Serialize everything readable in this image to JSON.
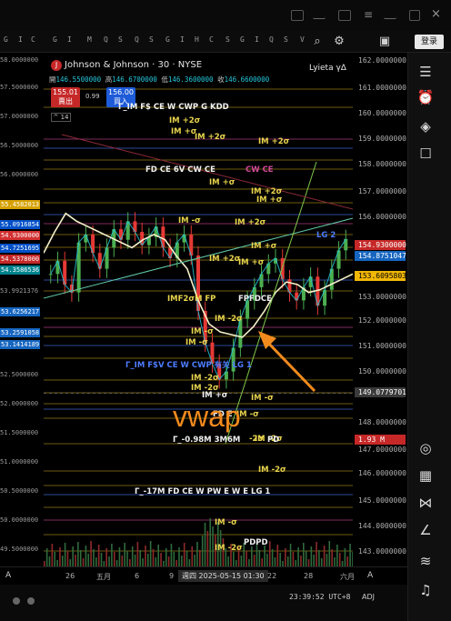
{
  "colors": {
    "background": "#000000",
    "level_yellow": "#e8d44d",
    "level_blue": "#4d7cff",
    "level_magenta": "#d34a9c",
    "vwap_annotation": "#f28a1d",
    "price_line_cyan": "#26c6da",
    "up_green": "#4caf50",
    "down_red": "#e53935"
  },
  "toolbar": {
    "letters": [
      "G",
      "I",
      "C",
      "G",
      "I",
      "M",
      "Q",
      "S",
      "Q",
      "S",
      "G",
      "I",
      "H",
      "C",
      "S",
      "G",
      "I",
      "Q",
      "S",
      "V",
      "G",
      "I",
      "T",
      "S",
      "I"
    ],
    "login_label": "登录",
    "icons": [
      "crosshair-icon",
      "settings-icon",
      "camera-icon"
    ]
  },
  "header": {
    "logo_letter": "J",
    "title": "Johnson & Johnson · 30 · NYSE",
    "ohlc_prefix": "開",
    "ohlc_open": "146.5500000",
    "ohlc_high_label": "高",
    "ohlc_high": "146.6700000",
    "ohlc_low_label": "低",
    "ohlc_low": "146.3600000",
    "ohlc_close_label": "收",
    "ohlc_close": "146.6600000",
    "ohlc_change": "+0.1100000 (+0.08%)",
    "sell_price": "155.01",
    "sell_label": "賣出",
    "spread": "0.99",
    "buy_price": "156.00",
    "buy_label": "買入",
    "interval_badge": "14",
    "right_label": "Lyieta γΔ"
  },
  "annotation": {
    "vwap": "vwap"
  },
  "levels": [
    {
      "text": "Γ_IM F$ CE W CWP G  KDD",
      "style": "w"
    },
    {
      "text": "IM +2σ",
      "style": "y"
    },
    {
      "text": "IM +σ",
      "style": "y"
    },
    {
      "text": "IM +2σ",
      "style": "y"
    },
    {
      "text": "IM +2σ",
      "style": "y"
    },
    {
      "text": "FD CE 6V CW CE",
      "style": "w"
    },
    {
      "text": "CW CE",
      "style": "r"
    },
    {
      "text": "IM +σ",
      "style": "y"
    },
    {
      "text": "IM +2σ",
      "style": "y"
    },
    {
      "text": "IM +σ",
      "style": "y"
    },
    {
      "text": "IM -σ",
      "style": "y"
    },
    {
      "text": "IM +2σ",
      "style": "y"
    },
    {
      "text": "LG 2",
      "style": "b"
    },
    {
      "text": "IM +σ",
      "style": "y"
    },
    {
      "text": "IM +2σ",
      "style": "y"
    },
    {
      "text": "IM +σ",
      "style": "y"
    },
    {
      "text": "IMF2σM FP",
      "style": "y"
    },
    {
      "text": "FPFDCE",
      "style": "w"
    },
    {
      "text": "IM -2σ",
      "style": "y"
    },
    {
      "text": "IM -σ",
      "style": "y"
    },
    {
      "text": "IM -σ",
      "style": "y"
    },
    {
      "text": "Γ_IM F$V CE W CWP 有关 LG 1",
      "style": "b"
    },
    {
      "text": "IM -2σ",
      "style": "y"
    },
    {
      "text": "IM -2σ",
      "style": "y"
    },
    {
      "text": "IM +σ",
      "style": "w"
    },
    {
      "text": "IM -σ",
      "style": "y"
    },
    {
      "text": "IM -2σ",
      "style": "y"
    },
    {
      "text": "FD E",
      "style": "w"
    },
    {
      "text": "IM -σ",
      "style": "y"
    },
    {
      "text": "-2σ",
      "style": "y"
    },
    {
      "text": "Γ_-0.98M 3M6M",
      "style": "w"
    },
    {
      "text": "PD",
      "style": "w"
    },
    {
      "text": "IM -2σ",
      "style": "y"
    },
    {
      "text": "Γ_-17M FD CE W PW E W E LG 1",
      "style": "w"
    },
    {
      "text": "IM -σ",
      "style": "y"
    },
    {
      "text": "PDPD",
      "style": "w"
    },
    {
      "text": "IM -2σ",
      "style": "y"
    }
  ],
  "left_scale": [
    "58.0000000",
    "57.5000000",
    "57.0000000",
    "56.5000000",
    "56.0000000",
    "55.4582013",
    "55.0916854",
    "54.9300000",
    "54.7251695",
    "54.5378000",
    "54.3586536",
    "53.9921376",
    "53.6256217",
    "53.2591058",
    "53.1414189",
    "52.5000000",
    "52.0000000",
    "51.5000000",
    "51.0000000",
    "50.5000000",
    "50.0000000",
    "49.5000000"
  ],
  "right_scale": [
    "162.0000000",
    "161.0000000",
    "160.0000000",
    "159.0000000",
    "158.0000000",
    "157.0000000",
    "156.0000000",
    "154.9300000",
    "154.8751047",
    "153.6095803",
    "153.0000000",
    "152.0000000",
    "151.0000000",
    "150.0000000",
    "149.0779701",
    "148.0000000",
    "147.0000000",
    "1.93 M",
    "146.0000000",
    "145.0000000",
    "144.0000000",
    "143.0000000"
  ],
  "x_axis": {
    "ticks": [
      "26",
      "五月",
      "6",
      "9",
      "22",
      "28",
      "六月"
    ],
    "cursor_label": "週四 2025-05-15  01:30",
    "scale_ctrl": "A"
  },
  "status": {
    "clock": "23:39:52 UTC+8",
    "adj": "ADJ"
  },
  "right_sidebar_icons": [
    "watchlist-icon",
    "alerts-icon",
    "layers-icon",
    "chat-icon",
    "target-icon",
    "calendar-icon",
    "pattern-icon",
    "fib-icon",
    "signal-icon",
    "bell-icon",
    "shield-icon",
    "help-icon"
  ],
  "chart_data": {
    "type": "candlestick",
    "symbol": "Johnson & Johnson · 30 · NYSE",
    "ylim": [
      142.5,
      162.0
    ],
    "last_price": 154.93,
    "cursor_price": 149.0779701,
    "close_series": [
      153.6,
      154.1,
      153.2,
      152.9,
      154.8,
      155.1,
      154.4,
      153.8,
      154.6,
      155.3,
      154.9,
      155.6,
      155.2,
      154.7,
      155.0,
      155.4,
      154.6,
      154.2,
      154.8,
      155.1,
      154.3,
      152.2,
      151.0,
      150.2,
      149.6,
      149.9,
      150.8,
      151.9,
      152.6,
      153.1,
      153.6,
      154.0,
      154.2,
      153.4,
      152.9,
      152.6,
      153.1,
      153.5,
      152.4,
      153.0,
      153.8,
      154.5,
      154.93
    ],
    "vwap_series": [
      154.4,
      155.2,
      155.9,
      155.6,
      155.4,
      155.2,
      155.0,
      154.8,
      154.6,
      154.9,
      155.1,
      154.9,
      154.3,
      153.8,
      152.6,
      151.7,
      151.4,
      151.3,
      151.2,
      151.6,
      152.2,
      152.9,
      153.3,
      153.2,
      152.9,
      153.0,
      153.2,
      153.4,
      153.6
    ]
  }
}
